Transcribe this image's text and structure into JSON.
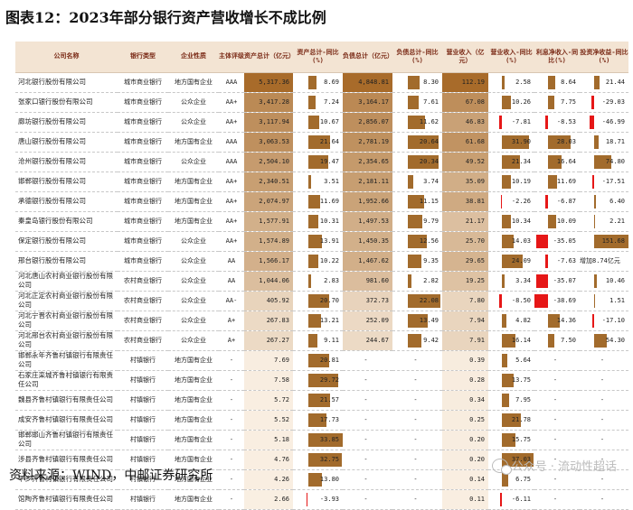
{
  "title": "图表12：2023年部分银行资产营收增长不成比例",
  "source": "资料来源：WIND，中邮证券研究所",
  "watermark": "公众号 · 流动性超话",
  "headers": [
    "公司名称",
    "银行类型",
    "企业性质",
    "主体评级",
    "资产总计（亿元）",
    "资产总计-同比(%)",
    "负债总计（亿元）",
    "负债总计-同比(%)",
    "营业收入（亿元）",
    "营业收入-同比(%)",
    "利息净收入-同比(%)",
    "投资净收益-同比(%)"
  ],
  "rows": [
    {
      "name": "河北银行股份有限公司",
      "type": "城市商业银行",
      "nature": "地方国有企业",
      "rating": "AAA",
      "assets": "5,317.36",
      "assets_yoy": "8.69",
      "liab": "4,848.81",
      "liab_yoy": "8.30",
      "rev": "112.19",
      "rev_yoy": "2.58",
      "nii_yoy": "8.64",
      "inv_yoy": "21.44"
    },
    {
      "name": "张家口银行股份有限公司",
      "type": "城市商业银行",
      "nature": "公众企业",
      "rating": "AA+",
      "assets": "3,417.28",
      "assets_yoy": "7.24",
      "liab": "3,164.17",
      "liab_yoy": "7.61",
      "rev": "67.08",
      "rev_yoy": "10.26",
      "nii_yoy": "7.75",
      "inv_yoy": "-29.03"
    },
    {
      "name": "廊坊银行股份有限公司",
      "type": "城市商业银行",
      "nature": "公众企业",
      "rating": "AA+",
      "assets": "3,117.94",
      "assets_yoy": "10.67",
      "liab": "2,856.07",
      "liab_yoy": "11.62",
      "rev": "46.83",
      "rev_yoy": "-7.81",
      "nii_yoy": "-8.53",
      "inv_yoy": "-46.99"
    },
    {
      "name": "唐山银行股份有限公司",
      "type": "城市商业银行",
      "nature": "地方国有企业",
      "rating": "AAA",
      "assets": "3,063.53",
      "assets_yoy": "21.64",
      "liab": "2,781.19",
      "liab_yoy": "20.64",
      "rev": "61.68",
      "rev_yoy": "31.90",
      "nii_yoy": "28.03",
      "inv_yoy": "18.71"
    },
    {
      "name": "沧州银行股份有限公司",
      "type": "城市商业银行",
      "nature": "公众企业",
      "rating": "AAA",
      "assets": "2,504.10",
      "assets_yoy": "19.47",
      "liab": "2,354.65",
      "liab_yoy": "20.34",
      "rev": "49.52",
      "rev_yoy": "21.34",
      "nii_yoy": "16.64",
      "inv_yoy": "74.80"
    },
    {
      "name": "邯郸银行股份有限公司",
      "type": "城市商业银行",
      "nature": "地方国有企业",
      "rating": "AA+",
      "assets": "2,340.51",
      "assets_yoy": "3.51",
      "liab": "2,181.11",
      "liab_yoy": "3.74",
      "rev": "35.09",
      "rev_yoy": "10.19",
      "nii_yoy": "11.69",
      "inv_yoy": "-17.51"
    },
    {
      "name": "承德银行股份有限公司",
      "type": "城市商业银行",
      "nature": "地方国有企业",
      "rating": "AA+",
      "assets": "2,074.97",
      "assets_yoy": "11.69",
      "liab": "1,952.66",
      "liab_yoy": "11.15",
      "rev": "38.81",
      "rev_yoy": "-2.26",
      "nii_yoy": "-6.87",
      "inv_yoy": "6.40"
    },
    {
      "name": "秦皇岛银行股份有限公司",
      "type": "城市商业银行",
      "nature": "地方国有企业",
      "rating": "AA+",
      "assets": "1,577.91",
      "assets_yoy": "10.31",
      "liab": "1,497.53",
      "liab_yoy": "9.79",
      "rev": "21.17",
      "rev_yoy": "10.34",
      "nii_yoy": "10.09",
      "inv_yoy": "2.21"
    },
    {
      "name": "保定银行股份有限公司",
      "type": "城市商业银行",
      "nature": "公众企业",
      "rating": "AA+",
      "assets": "1,574.89",
      "assets_yoy": "13.91",
      "liab": "1,450.35",
      "liab_yoy": "12.56",
      "rev": "25.70",
      "rev_yoy": "14.03",
      "nii_yoy": "-35.05",
      "inv_yoy": "151.68"
    },
    {
      "name": "邢台银行股份有限公司",
      "type": "城市商业银行",
      "nature": "公众企业",
      "rating": "AA",
      "assets": "1,566.17",
      "assets_yoy": "10.22",
      "liab": "1,467.62",
      "liab_yoy": "9.35",
      "rev": "29.65",
      "rev_yoy": "24.09",
      "nii_yoy": "-7.63",
      "inv_yoy": "增加8.74亿元"
    },
    {
      "name": "河北唐山农村商业银行股份有限公司",
      "type": "农村商业银行",
      "nature": "公众企业",
      "rating": "AA",
      "assets": "1,044.06",
      "assets_yoy": "2.83",
      "liab": "981.60",
      "liab_yoy": "2.82",
      "rev": "19.25",
      "rev_yoy": "3.34",
      "nii_yoy": "-35.07",
      "inv_yoy": "10.46"
    },
    {
      "name": "河北正定农村商业银行股份有限公司",
      "type": "农村商业银行",
      "nature": "公众企业",
      "rating": "AA-",
      "assets": "405.92",
      "assets_yoy": "20.70",
      "liab": "372.73",
      "liab_yoy": "22.08",
      "rev": "7.80",
      "rev_yoy": "-8.50",
      "nii_yoy": "-38.69",
      "inv_yoy": "1.51"
    },
    {
      "name": "河北宁晋农村商业银行股份有限公司",
      "type": "农村商业银行",
      "nature": "公众企业",
      "rating": "A+",
      "assets": "267.83",
      "assets_yoy": "13.21",
      "liab": "252.09",
      "liab_yoy": "13.49",
      "rev": "7.94",
      "rev_yoy": "4.82",
      "nii_yoy": "14.36",
      "inv_yoy": "-17.10"
    },
    {
      "name": "河北邢台农村商业银行股份有限公司",
      "type": "农村商业银行",
      "nature": "公众企业",
      "rating": "A+",
      "assets": "267.27",
      "assets_yoy": "9.11",
      "liab": "244.67",
      "liab_yoy": "9.42",
      "rev": "7.91",
      "rev_yoy": "16.14",
      "nii_yoy": "7.50",
      "inv_yoy": "54.30"
    },
    {
      "name": "邯郸永年齐鲁村镇银行有限责任公司",
      "type": "村镇银行",
      "nature": "地方国有企业",
      "rating": "-",
      "assets": "7.69",
      "assets_yoy": "20.81",
      "liab": "-",
      "liab_yoy": "-",
      "rev": "0.39",
      "rev_yoy": "5.64",
      "nii_yoy": "-",
      "inv_yoy": "-"
    },
    {
      "name": "石家庄栾城齐鲁村镇银行有限责任公司",
      "type": "村镇银行",
      "nature": "地方国有企业",
      "rating": "-",
      "assets": "7.58",
      "assets_yoy": "29.72",
      "liab": "-",
      "liab_yoy": "-",
      "rev": "0.28",
      "rev_yoy": "13.75",
      "nii_yoy": "-",
      "inv_yoy": "-"
    },
    {
      "name": "魏县齐鲁村镇银行有限责任公司",
      "type": "村镇银行",
      "nature": "地方国有企业",
      "rating": "-",
      "assets": "5.72",
      "assets_yoy": "21.57",
      "liab": "-",
      "liab_yoy": "-",
      "rev": "0.34",
      "rev_yoy": "7.95",
      "nii_yoy": "-",
      "inv_yoy": "-"
    },
    {
      "name": "成安齐鲁村镇银行有限责任公司",
      "type": "村镇银行",
      "nature": "地方国有企业",
      "rating": "-",
      "assets": "5.52",
      "assets_yoy": "17.73",
      "liab": "-",
      "liab_yoy": "-",
      "rev": "0.25",
      "rev_yoy": "21.78",
      "nii_yoy": "-",
      "inv_yoy": "-"
    },
    {
      "name": "邯郸邯山齐鲁村镇银行有限责任公司",
      "type": "村镇银行",
      "nature": "地方国有企业",
      "rating": "-",
      "assets": "5.18",
      "assets_yoy": "33.85",
      "liab": "-",
      "liab_yoy": "-",
      "rev": "0.20",
      "rev_yoy": "15.75",
      "nii_yoy": "-",
      "inv_yoy": "-"
    },
    {
      "name": "涉县齐鲁村镇银行有限责任公司",
      "type": "村镇银行",
      "nature": "地方国有企业",
      "rating": "-",
      "assets": "4.76",
      "assets_yoy": "32.75",
      "liab": "-",
      "liab_yoy": "-",
      "rev": "0.20",
      "rev_yoy": "37.03",
      "nii_yoy": "-",
      "inv_yoy": "-"
    },
    {
      "name": "平乡齐鲁村镇银行有限责任公司",
      "type": "村镇银行",
      "nature": "地方国有企业",
      "rating": "-",
      "assets": "4.26",
      "assets_yoy": "13.80",
      "liab": "-",
      "liab_yoy": "-",
      "rev": "0.14",
      "rev_yoy": "6.75",
      "nii_yoy": "-",
      "inv_yoy": "-"
    },
    {
      "name": "馆陶齐鲁村镇银行有限责任公司",
      "type": "村镇银行",
      "nature": "地方国有企业",
      "rating": "-",
      "assets": "2.66",
      "assets_yoy": "-3.93",
      "liab": "-",
      "liab_yoy": "-",
      "rev": "0.11",
      "rev_yoy": "-6.11",
      "nii_yoy": "-",
      "inv_yoy": "-"
    }
  ],
  "colors": {
    "header_bg": "#f3e4d3",
    "header_text": "#7a2a16",
    "bar_brown": "#a26b2c",
    "bar_red": "#e61717",
    "heat_high": "#a86b2a"
  }
}
